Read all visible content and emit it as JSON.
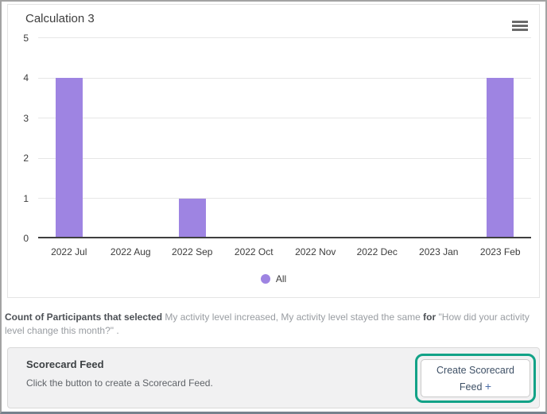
{
  "chart_data": {
    "type": "bar",
    "title": "Calculation 3",
    "categories": [
      "2022 Jul",
      "2022 Aug",
      "2022 Sep",
      "2022 Oct",
      "2022 Nov",
      "2022 Dec",
      "2023 Jan",
      "2023 Feb"
    ],
    "series": [
      {
        "name": "All",
        "values": [
          4,
          0,
          1,
          0,
          0,
          0,
          0,
          4
        ],
        "color": "#9e84e2"
      }
    ],
    "xlabel": "",
    "ylabel": "",
    "ylim": [
      0,
      5
    ],
    "yticks": [
      0,
      1,
      2,
      3,
      4,
      5
    ],
    "grid": true,
    "legend_position": "bottom"
  },
  "icons": {
    "chart_menu": "hamburger-menu",
    "button_plus": "plus"
  },
  "description": {
    "segments": [
      {
        "text": "Count of Participants that selected ",
        "style": "strong"
      },
      {
        "text": "My activity level increased, My activity level stayed the same ",
        "style": "muted"
      },
      {
        "text": "for ",
        "style": "strong"
      },
      {
        "text": "\"How did your activity level change this month?\" .",
        "style": "muted"
      }
    ]
  },
  "scorecard": {
    "title": "Scorecard Feed",
    "subtitle": "Click the button to create a Scorecard Feed.",
    "button_label": "Create Scorecard Feed",
    "button_plus": "+",
    "highlight_color": "#12a287"
  },
  "colors": {
    "bar": "#9e84e2",
    "gridline": "#e6e6e6",
    "axis_line": "#3f3f3f",
    "panel_bg": "#f1f1f2",
    "button_text": "#3e5066"
  }
}
